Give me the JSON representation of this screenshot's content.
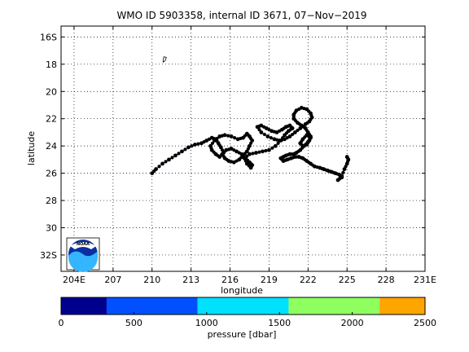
{
  "chart_data": {
    "type": "scatter",
    "title": "WMO ID 5903358, internal ID 3671, 07−Nov−2019",
    "xlabel": "longitude",
    "ylabel": "latitude",
    "xlim": [
      203,
      231
    ],
    "ylim": [
      -33.2,
      -15.2
    ],
    "x_ticks": [
      204,
      207,
      210,
      213,
      216,
      219,
      222,
      225,
      228,
      231
    ],
    "x_tick_labels": [
      "204E",
      "207",
      "210",
      "213",
      "216",
      "219",
      "222",
      "225",
      "228",
      "231E"
    ],
    "y_ticks": [
      -16,
      -18,
      -20,
      -22,
      -24,
      -26,
      -28,
      -30,
      -32
    ],
    "y_tick_labels": [
      "16S",
      "18",
      "20",
      "22",
      "24",
      "26",
      "28",
      "30",
      "32S"
    ],
    "grid": true,
    "grid_style": "dotted",
    "island_outline": {
      "x": [
        210.9,
        211.1,
        211.0,
        210.85,
        210.9
      ],
      "y": [
        -17.45,
        -17.5,
        -17.75,
        -17.85,
        -17.45
      ]
    },
    "trajectory": {
      "x": [
        210.0,
        210.3,
        210.8,
        211.3,
        211.8,
        212.3,
        212.8,
        213.3,
        213.8,
        214.2,
        214.6,
        214.9,
        215.1,
        215.3,
        215.5,
        215.2,
        214.9,
        214.6,
        214.5,
        214.8,
        215.2,
        215.6,
        216.1,
        216.6,
        217.0,
        217.3,
        217.5,
        217.7,
        217.5,
        217.3,
        217.0,
        216.7,
        216.3,
        215.9,
        215.6,
        215.4,
        215.7,
        216.1,
        216.5,
        216.9,
        217.2,
        217.5,
        217.7,
        217.6,
        217.3,
        217.1,
        217.5,
        218.0,
        218.5,
        219.0,
        219.5,
        219.9,
        220.2,
        220.5,
        220.8,
        220.6,
        220.3,
        220.0,
        219.6,
        219.2,
        218.8,
        218.4,
        218.1,
        218.4,
        218.9,
        219.4,
        219.8,
        220.2,
        220.6,
        221.0,
        221.4,
        221.8,
        222.1,
        222.3,
        222.2,
        221.9,
        221.5,
        221.1,
        220.9,
        220.9,
        221.2,
        221.5,
        221.8,
        222.0,
        222.2,
        222.1,
        221.9,
        221.6,
        221.4,
        221.6,
        221.9,
        222.2,
        222.0,
        221.7,
        221.4,
        221.1,
        220.9,
        220.6,
        220.3,
        220.1,
        219.9,
        220.1,
        220.4,
        220.7,
        221.0,
        221.3,
        221.6,
        221.9,
        222.2,
        222.5,
        222.9,
        223.2,
        223.5,
        223.8,
        224.1,
        224.4,
        224.6,
        224.3,
        224.6,
        224.8,
        225.0,
        225.1,
        225.0
      ],
      "y": [
        -26.0,
        -25.7,
        -25.3,
        -25.0,
        -24.7,
        -24.4,
        -24.1,
        -23.9,
        -23.8,
        -23.6,
        -23.4,
        -23.5,
        -23.8,
        -24.1,
        -24.5,
        -24.8,
        -24.6,
        -24.3,
        -24.0,
        -23.6,
        -23.3,
        -23.2,
        -23.3,
        -23.5,
        -23.4,
        -23.1,
        -23.3,
        -23.6,
        -24.0,
        -24.4,
        -24.7,
        -25.0,
        -25.2,
        -25.1,
        -24.9,
        -24.6,
        -24.3,
        -24.2,
        -24.4,
        -24.6,
        -24.9,
        -25.2,
        -25.4,
        -25.6,
        -25.3,
        -24.9,
        -24.6,
        -24.5,
        -24.4,
        -24.3,
        -24.0,
        -23.6,
        -23.2,
        -22.9,
        -22.7,
        -22.5,
        -22.6,
        -22.8,
        -23.0,
        -22.9,
        -22.7,
        -22.5,
        -22.6,
        -23.0,
        -23.3,
        -23.5,
        -23.6,
        -23.5,
        -23.3,
        -23.0,
        -22.7,
        -22.4,
        -22.2,
        -21.9,
        -21.6,
        -21.3,
        -21.2,
        -21.4,
        -21.7,
        -22.0,
        -22.3,
        -22.5,
        -22.7,
        -23.0,
        -23.3,
        -23.6,
        -23.9,
        -24.0,
        -23.8,
        -23.5,
        -23.2,
        -23.4,
        -23.7,
        -24.0,
        -24.3,
        -24.5,
        -24.6,
        -24.6,
        -24.7,
        -24.8,
        -24.9,
        -25.1,
        -25.0,
        -24.9,
        -24.8,
        -24.8,
        -24.9,
        -25.1,
        -25.3,
        -25.5,
        -25.6,
        -25.7,
        -25.8,
        -25.9,
        -26.0,
        -26.1,
        -26.3,
        -26.5,
        -26.2,
        -25.7,
        -25.3,
        -25.0,
        -24.8
      ],
      "color": "#000000"
    },
    "colorbar": {
      "label": "pressure [dbar]",
      "range": [
        0,
        2500
      ],
      "tick_values": [
        0,
        500,
        1000,
        1500,
        2000,
        2500
      ],
      "tick_labels": [
        "0",
        "500",
        "1000",
        "1500",
        "2000",
        "2500"
      ],
      "bins": [
        {
          "from": 0,
          "to": 313,
          "color": "#00008f"
        },
        {
          "from": 313,
          "to": 938,
          "color": "#0050ff"
        },
        {
          "from": 938,
          "to": 1563,
          "color": "#00e0ff"
        },
        {
          "from": 1563,
          "to": 2188,
          "color": "#8fff60"
        },
        {
          "from": 2188,
          "to": 2500,
          "color": "#ffa500"
        }
      ]
    },
    "logo": {
      "text": "NOAA",
      "position": "bottom-left"
    }
  }
}
